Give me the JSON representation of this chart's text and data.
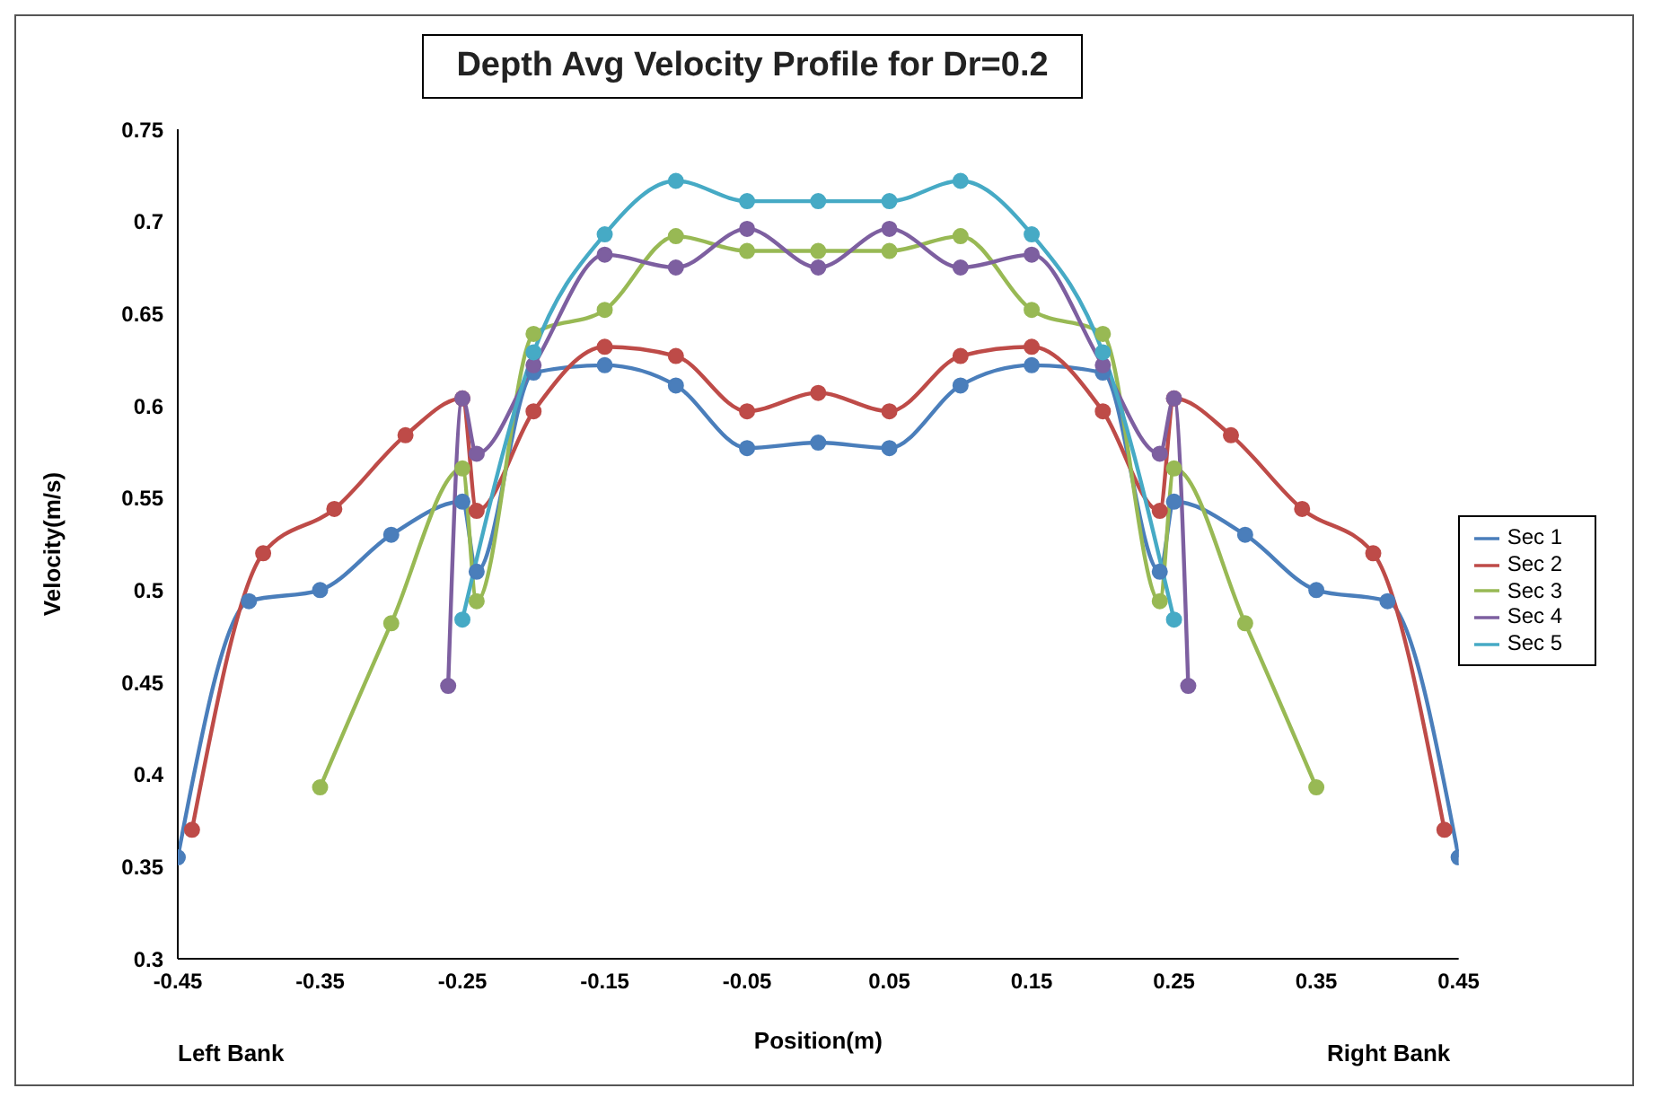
{
  "chart_data": {
    "type": "line",
    "title": "Depth Avg Velocity Profile for Dr=0.2",
    "xlabel": "Position(m)",
    "ylabel": "Velocity(m/s)",
    "annotations": [
      "Left Bank",
      "Right Bank"
    ],
    "xlim": [
      -0.45,
      0.45
    ],
    "xticks": [
      -0.45,
      -0.35,
      -0.25,
      -0.15,
      -0.05,
      0.05,
      0.15,
      0.25,
      0.35,
      0.45
    ],
    "ylim": [
      0.3,
      0.75
    ],
    "yticks": [
      0.3,
      0.35,
      0.4,
      0.45,
      0.5,
      0.55,
      0.6,
      0.65,
      0.7,
      0.75
    ],
    "grid": false,
    "legend": "right",
    "marker": "circle",
    "line_style": "solid",
    "series": [
      {
        "name": "Sec 1",
        "color": "#4a7ebb",
        "x": [
          -0.45,
          -0.4,
          -0.35,
          -0.3,
          -0.25,
          -0.24,
          -0.2,
          -0.15,
          -0.1,
          -0.05,
          0,
          0.05,
          0.1,
          0.15,
          0.2,
          0.24,
          0.25,
          0.3,
          0.35,
          0.4,
          0.45
        ],
        "values": [
          0.355,
          0.494,
          0.5,
          0.53,
          0.548,
          0.51,
          0.618,
          0.622,
          0.611,
          0.577,
          0.58,
          0.577,
          0.611,
          0.622,
          0.618,
          0.51,
          0.548,
          0.53,
          0.5,
          0.494,
          0.355
        ]
      },
      {
        "name": "Sec 2",
        "color": "#be4b48",
        "x": [
          -0.44,
          -0.39,
          -0.34,
          -0.29,
          -0.25,
          -0.24,
          -0.2,
          -0.15,
          -0.1,
          -0.05,
          0,
          0.05,
          0.1,
          0.15,
          0.2,
          0.24,
          0.25,
          0.29,
          0.34,
          0.39,
          0.44
        ],
        "values": [
          0.37,
          0.52,
          0.544,
          0.584,
          0.604,
          0.543,
          0.597,
          0.632,
          0.627,
          0.597,
          0.607,
          0.597,
          0.627,
          0.632,
          0.597,
          0.543,
          0.604,
          0.584,
          0.544,
          0.52,
          0.37
        ]
      },
      {
        "name": "Sec 3",
        "color": "#98b954",
        "x": [
          -0.35,
          -0.3,
          -0.25,
          -0.24,
          -0.2,
          -0.15,
          -0.1,
          -0.05,
          0,
          0.05,
          0.1,
          0.15,
          0.2,
          0.24,
          0.25,
          0.3,
          0.35
        ],
        "values": [
          0.393,
          0.482,
          0.566,
          0.494,
          0.639,
          0.652,
          0.692,
          0.684,
          0.684,
          0.684,
          0.692,
          0.652,
          0.639,
          0.494,
          0.566,
          0.482,
          0.393
        ]
      },
      {
        "name": "Sec 4",
        "color": "#7d5fa0",
        "x": [
          -0.26,
          -0.25,
          -0.24,
          -0.2,
          -0.15,
          -0.1,
          -0.05,
          0,
          0.05,
          0.1,
          0.15,
          0.2,
          0.24,
          0.25,
          0.26
        ],
        "values": [
          0.448,
          0.604,
          0.574,
          0.622,
          0.682,
          0.675,
          0.696,
          0.675,
          0.696,
          0.675,
          0.682,
          0.622,
          0.574,
          0.604,
          0.448
        ]
      },
      {
        "name": "Sec 5",
        "color": "#46aac5",
        "x": [
          -0.25,
          -0.2,
          -0.15,
          -0.1,
          -0.05,
          0,
          0.05,
          0.1,
          0.15,
          0.2,
          0.25
        ],
        "values": [
          0.484,
          0.629,
          0.693,
          0.722,
          0.711,
          0.711,
          0.711,
          0.722,
          0.693,
          0.629,
          0.484
        ]
      }
    ]
  }
}
